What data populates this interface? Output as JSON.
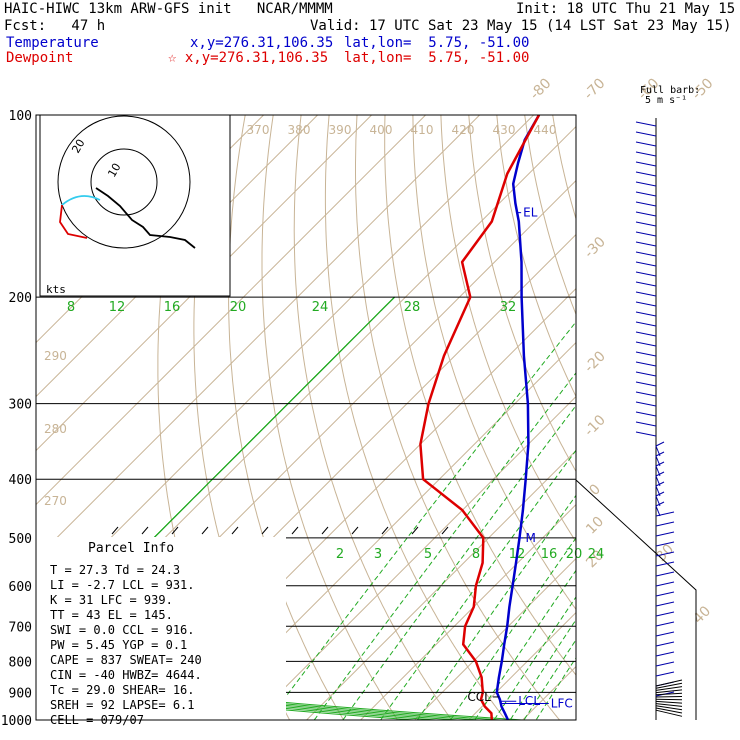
{
  "header": {
    "line1_left": "HAIC-HIWC 13km ARW-GFS init   NCAR/MMMM",
    "line1_right": "Init: 18 UTC Thu 21 May 15",
    "line2_left": "Fcst:   47 h",
    "line2_right": "Valid: 17 UTC Sat 23 May 15 (14 LST Sat 23 May 15)",
    "temp_label": "Temperature",
    "temp_xy": "x,y=276.31,106.35",
    "temp_latlon": "lat,lon=  5.75, -51.00",
    "dew_label": "Dewpoint",
    "dew_xy": "☆ x,y=276.31,106.35",
    "dew_latlon": "lat,lon=  5.75, -51.00"
  },
  "colors": {
    "temperature": "#0000cc",
    "dewpoint": "#dd0000",
    "isotherm": "#c8b496",
    "mixing_ratio": "#22aa22",
    "isobar": "#000000"
  },
  "barb_key": {
    "line1": "Full barb:",
    "line2": "5 m s⁻¹"
  },
  "hodograph": {
    "unit": "kts",
    "ring_labels": [
      "10",
      "20"
    ]
  },
  "chart_data": {
    "type": "line",
    "title": "HAIC-HIWC 13km ARW-GFS init   NCAR/MMMM",
    "y_axis": {
      "label": "",
      "scale": "log",
      "ticks": [
        100,
        200,
        300,
        400,
        500,
        600,
        700,
        800,
        900,
        1000
      ],
      "range": [
        1000,
        100
      ]
    },
    "isotherm_labels": [
      "-80",
      "-70",
      "-60",
      "-50",
      "-40",
      "-30",
      "-20",
      "-10",
      "0",
      "10",
      "20",
      "30",
      "40"
    ],
    "theta_labels_top": [
      "370",
      "380",
      "390",
      "400",
      "410",
      "420",
      "430",
      "440"
    ],
    "theta_labels_left": [
      "290",
      "280",
      "270"
    ],
    "mixing_ratio_labels_upper": [
      "8",
      "12",
      "16",
      "20",
      "24",
      "28",
      "32"
    ],
    "mixing_ratio_labels_lower": [
      "2",
      "3",
      "5",
      "8",
      "12",
      "16",
      "20",
      "24"
    ],
    "series": [
      {
        "name": "Temperature",
        "points": [
          [
            1000,
            27.3
          ],
          [
            975,
            25.5
          ],
          [
            950,
            23.6
          ],
          [
            925,
            22.0
          ],
          [
            900,
            20.1
          ],
          [
            850,
            17.7
          ],
          [
            800,
            15.3
          ],
          [
            750,
            12.6
          ],
          [
            700,
            9.8
          ],
          [
            650,
            6.6
          ],
          [
            600,
            3.3
          ],
          [
            550,
            -0.3
          ],
          [
            500,
            -4.3
          ],
          [
            450,
            -8.8
          ],
          [
            400,
            -14.0
          ],
          [
            350,
            -20.0
          ],
          [
            300,
            -27.6
          ],
          [
            250,
            -37.2
          ],
          [
            200,
            -48.5
          ],
          [
            175,
            -55.0
          ],
          [
            150,
            -63.0
          ],
          [
            140,
            -67.0
          ],
          [
            130,
            -71.0
          ],
          [
            120,
            -74.0
          ],
          [
            110,
            -77.0
          ],
          [
            100,
            -79.0
          ]
        ]
      },
      {
        "name": "Dewpoint",
        "points": [
          [
            1000,
            24.3
          ],
          [
            975,
            23.0
          ],
          [
            950,
            20.5
          ],
          [
            925,
            18.5
          ],
          [
            900,
            17.5
          ],
          [
            850,
            14.5
          ],
          [
            800,
            10.5
          ],
          [
            750,
            5.0
          ],
          [
            700,
            2.0
          ],
          [
            650,
            0.0
          ],
          [
            600,
            -3.5
          ],
          [
            550,
            -6.5
          ],
          [
            500,
            -11.0
          ],
          [
            450,
            -20.0
          ],
          [
            400,
            -33.0
          ],
          [
            350,
            -40.0
          ],
          [
            300,
            -46.0
          ],
          [
            250,
            -52.0
          ],
          [
            200,
            -58.0
          ],
          [
            175,
            -66.0
          ],
          [
            150,
            -68.0
          ],
          [
            125,
            -74.0
          ],
          [
            100,
            -79.0
          ]
        ]
      }
    ],
    "annotations": [
      {
        "text": "EL",
        "pressure": 145
      },
      {
        "text": "M",
        "pressure": 500
      },
      {
        "text": "CCL",
        "pressure": 916
      },
      {
        "text": "LCL",
        "pressure": 931
      },
      {
        "text": "LFC",
        "pressure": 939
      }
    ]
  },
  "parcel_info": {
    "title": "Parcel Info",
    "rows": [
      "T  =    27.3 Td =   24.3",
      "LI =    -2.7 LCL =  931.",
      "K  =      31 LFC =  939.",
      "TT =      43 EL  =  145.",
      "SWI =    0.0 CCL =  916.",
      "PW =   5.45 YGP =    0.1",
      "CAPE =   837 SWEAT=  240",
      "CIN =    -40 HWBZ= 4644.",
      "Tc =    29.0 SHEAR=  16.",
      "SREH =    92 LAPSE=  6.1",
      "CELL = 079/07"
    ]
  }
}
